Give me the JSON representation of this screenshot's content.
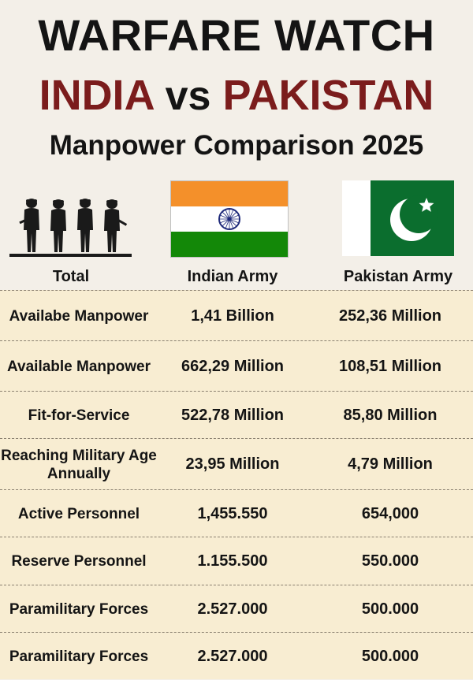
{
  "header": {
    "title": "WARFARE WATCH",
    "country_a": "INDIA",
    "vs": "vs",
    "country_b": "PAKISTAN",
    "subtitle": "Manpower Comparison 2025"
  },
  "icons": {
    "soldiers": "soldiers-silhouette-icon",
    "flag_india": "india-flag-icon",
    "flag_pakistan": "pakistan-flag-icon"
  },
  "colors": {
    "country_names": "#7b1c1c",
    "table_background": "#f8edd2",
    "india_saffron": "#f4902a",
    "india_green": "#138808",
    "india_chakra": "#1f2a7a",
    "pakistan_green": "#0b6e2e"
  },
  "columns": [
    "Total",
    "Indian Army",
    "Pakistan Army"
  ],
  "rows": [
    {
      "label": "Availabe Manpower",
      "india": "1,41 Billion",
      "pakistan": "252,36 Million"
    },
    {
      "label": "Available Manpower",
      "india": "662,29 Million",
      "pakistan": "108,51 Million"
    },
    {
      "label": "Fit-for-Service",
      "india": "522,78 Million",
      "pakistan": "85,80 Million"
    },
    {
      "label": "Reaching Military Age Annually",
      "india": "23,95 Million",
      "pakistan": "4,79 Million"
    },
    {
      "label": "Active Personnel",
      "india": "1,455.550",
      "pakistan": "654,000"
    },
    {
      "label": "Reserve Personnel",
      "india": "1.155.500",
      "pakistan": "550.000"
    },
    {
      "label": "Paramilitary Forces",
      "india": "2.527.000",
      "pakistan": "500.000"
    },
    {
      "label": "Paramilitary Forces",
      "india": "2.527.000",
      "pakistan": "500.000"
    }
  ]
}
